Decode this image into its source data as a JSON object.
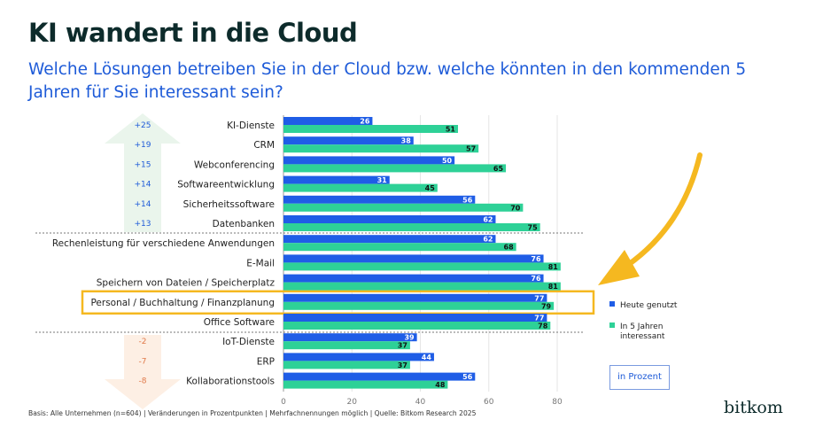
{
  "header": {
    "title": "KI wandert in die Cloud",
    "subtitle": "Welche Lösungen betreiben Sie in der Cloud bzw. welche könnten in den kommenden 5 Jahren für Sie interessant sein?"
  },
  "chart_data": {
    "type": "bar",
    "orientation": "horizontal",
    "categories": [
      "KI-Dienste",
      "CRM",
      "Webconferencing",
      "Softwareentwicklung",
      "Sicherheitssoftware",
      "Datenbanken",
      "Rechenleistung für verschiedene Anwendungen",
      "E-Mail",
      "Speichern von Dateien / Speicherplatz",
      "Personal / Buchhaltung / Finanzplanung",
      "Office Software",
      "IoT-Dienste",
      "ERP",
      "Kollaborationstools"
    ],
    "series": [
      {
        "name": "Heute genutzt",
        "color": "#1f5de6",
        "values": [
          26,
          38,
          50,
          31,
          56,
          62,
          62,
          76,
          76,
          77,
          77,
          39,
          44,
          56
        ]
      },
      {
        "name": "In 5 Jahren interessant",
        "color": "#2ed197",
        "values": [
          51,
          57,
          65,
          45,
          70,
          75,
          68,
          81,
          81,
          79,
          78,
          37,
          37,
          48
        ]
      }
    ],
    "changes": [
      "+25",
      "+19",
      "+15",
      "+14",
      "+14",
      "+13",
      "",
      "",
      "",
      "",
      "",
      "-2",
      "-7",
      "-8"
    ],
    "xticks": [
      0,
      20,
      40,
      60,
      80
    ],
    "xlim": [
      0,
      80
    ],
    "grid": true,
    "highlighted_category": "Personal / Buchhaltung / Finanzplanung",
    "highlight_color": "#f5b820",
    "up_arrow_color": "#eaf5ec",
    "down_arrow_color": "#fdefe4",
    "change_up_color": "#1e5bd8",
    "change_down_color": "#e07a4a"
  },
  "legend": {
    "items": [
      {
        "label": "Heute genutzt",
        "color": "#1f5de6"
      },
      {
        "label": "In 5 Jahren interessant",
        "color": "#2ed197"
      }
    ]
  },
  "unit_label": "in Prozent",
  "footer": "Basis: Alle Unternehmen (n=604) | Veränderungen in Prozentpunkten | Mehrfachnennungen möglich | Quelle: Bitkom Research 2025",
  "logo": "bitkom"
}
